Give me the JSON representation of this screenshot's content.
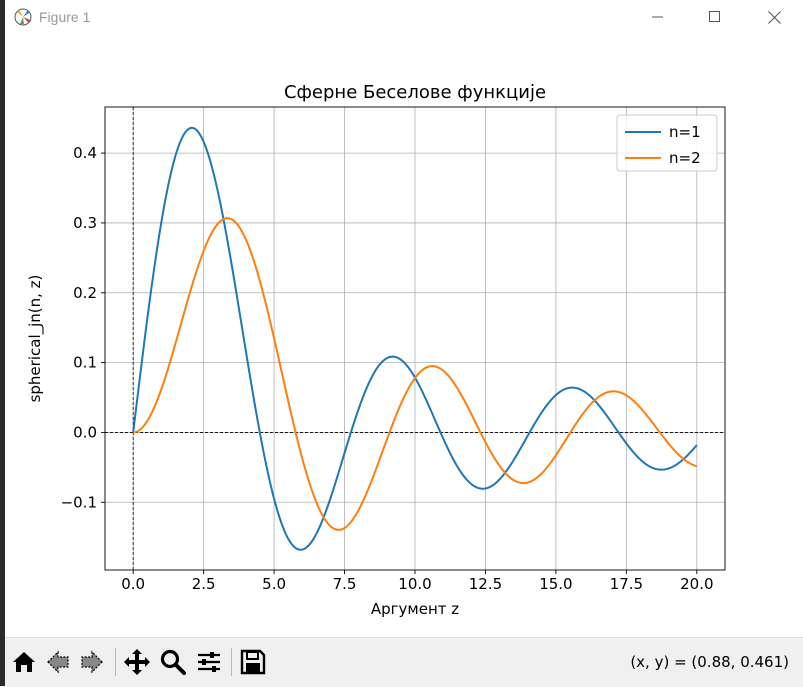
{
  "window": {
    "title": "Figure 1",
    "controls": [
      "minimize",
      "maximize",
      "close"
    ]
  },
  "toolbar": {
    "buttons": [
      "home-icon",
      "back-icon",
      "forward-icon",
      "pan-icon",
      "zoom-icon",
      "configure-subplots-icon",
      "save-icon"
    ],
    "coords": "(x, y) = (0.88, 0.461)"
  },
  "chart_data": {
    "type": "line",
    "title": "Сферне Беселове функције",
    "xlabel": "Аргумент z",
    "ylabel": "spherical_jn(n, z)",
    "xlim": [
      -1.0,
      21.0
    ],
    "ylim": [
      -0.197,
      0.466
    ],
    "xticks": [
      "0.0",
      "2.5",
      "5.0",
      "7.5",
      "10.0",
      "12.5",
      "15.0",
      "17.5",
      "20.0"
    ],
    "yticks": [
      "−0.1",
      "0.0",
      "0.1",
      "0.2",
      "0.3",
      "0.4"
    ],
    "grid": true,
    "legend": "top-right",
    "reference_lines": [
      "y=0 dashed",
      "x=0 dashed"
    ],
    "x_range": [
      0,
      20
    ],
    "series": [
      {
        "name": "n=1",
        "function": "spherical_jn(1, z)",
        "color": "#1f77b4"
      },
      {
        "name": "n=2",
        "function": "spherical_jn(2, z)",
        "color": "#ff7f0e"
      }
    ]
  }
}
